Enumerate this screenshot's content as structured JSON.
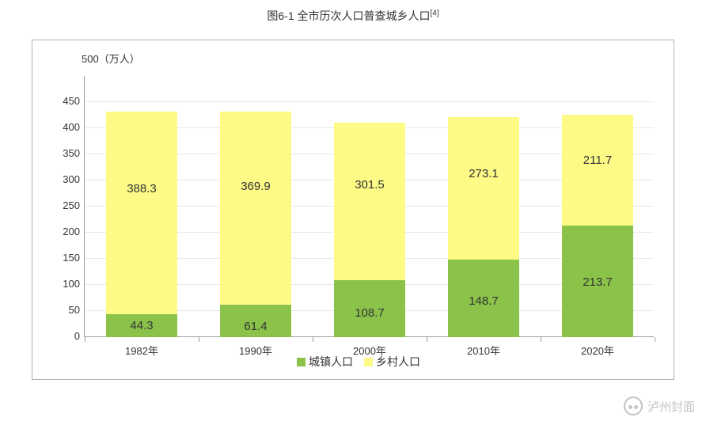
{
  "title": {
    "text": "图6-1 全市历次人口普查城乡人口",
    "superscript": "[4]",
    "fontsize": 14
  },
  "chart": {
    "type": "stacked-bar",
    "background_color": "#ffffff",
    "border_color": "#b0b0b0",
    "grid_color": "#e8e8e8",
    "axis_color": "#a0a0a0",
    "y_unit_label": "500（万人）",
    "ylim": [
      0,
      500
    ],
    "yticks": [
      0,
      50,
      100,
      150,
      200,
      250,
      300,
      350,
      400,
      450,
      500
    ],
    "categories": [
      "1982年",
      "1990年",
      "2000年",
      "2010年",
      "2020年"
    ],
    "bar_width_ratio": 0.62,
    "tick_fontsize": 13,
    "value_fontsize": 15,
    "series": [
      {
        "name": "城镇人口",
        "color": "#8bc34a",
        "values": [
          44.3,
          61.4,
          108.7,
          148.7,
          213.7
        ]
      },
      {
        "name": "乡村人口",
        "color": "#fdfa86",
        "values": [
          388.3,
          369.9,
          301.5,
          273.1,
          211.7
        ]
      }
    ],
    "legend": {
      "position": "bottom",
      "fontsize": 14
    }
  },
  "watermark": {
    "text": "泸州封面",
    "color": "#bdbdbd"
  }
}
